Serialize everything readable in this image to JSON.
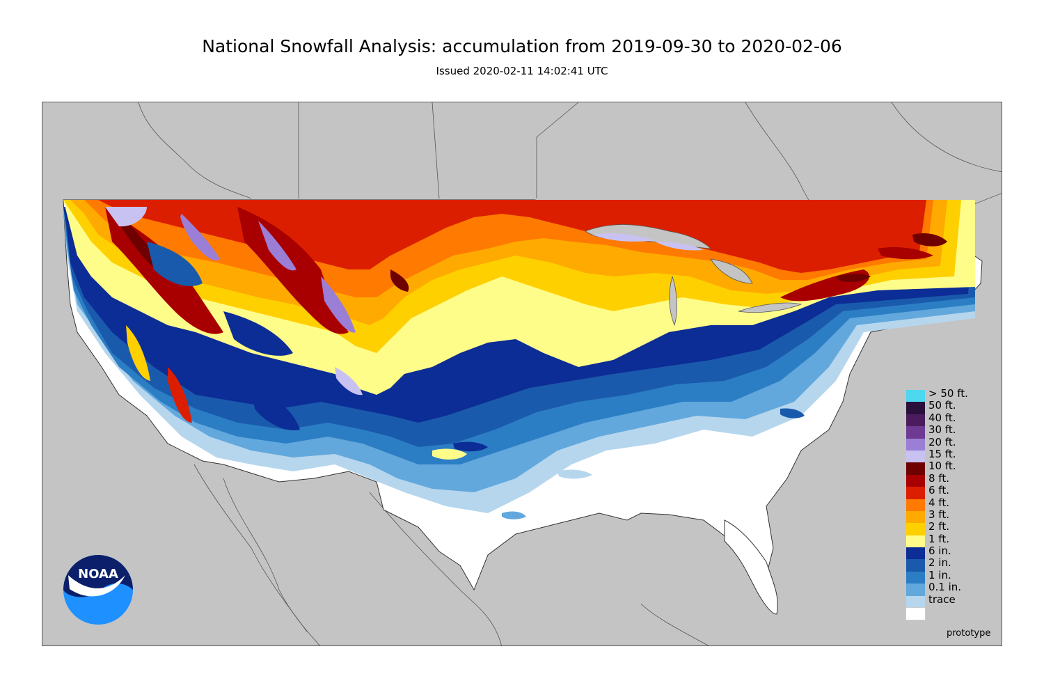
{
  "header": {
    "title": "National Snowfall Analysis: accumulation from 2019-09-30 to 2020-02-06",
    "subtitle": "Issued 2020-02-11 14:02:41 UTC"
  },
  "map": {
    "region": "Contiguous United States",
    "background_color": "#c4c4c4",
    "no_snow_color": "#ffffff"
  },
  "legend": [
    {
      "label": "> 50 ft.",
      "color": "#4dd8f0"
    },
    {
      "label": "50 ft.",
      "color": "#2a0f3a"
    },
    {
      "label": "40 ft.",
      "color": "#4a1c5e"
    },
    {
      "label": "30 ft.",
      "color": "#6e3a94"
    },
    {
      "label": "20 ft.",
      "color": "#9b7ed6"
    },
    {
      "label": "15 ft.",
      "color": "#c8c2f2"
    },
    {
      "label": "10 ft.",
      "color": "#6e0000"
    },
    {
      "label": "8 ft.",
      "color": "#a80000"
    },
    {
      "label": "6 ft.",
      "color": "#dc1e00"
    },
    {
      "label": "4 ft.",
      "color": "#ff7a00"
    },
    {
      "label": "3 ft.",
      "color": "#ffaa00"
    },
    {
      "label": "2 ft.",
      "color": "#ffd000"
    },
    {
      "label": "1 ft.",
      "color": "#fffd8a"
    },
    {
      "label": "6 in.",
      "color": "#0c2c96"
    },
    {
      "label": "2 in.",
      "color": "#1a5aac"
    },
    {
      "label": "1 in.",
      "color": "#2c7ec4"
    },
    {
      "label": "0.1 in.",
      "color": "#62a8dc"
    },
    {
      "label": "trace",
      "color": "#b6d6ee"
    },
    {
      "label": "",
      "color": "#ffffff"
    }
  ],
  "footer": {
    "prototype_label": "prototype",
    "logo_text": "NOAA"
  }
}
